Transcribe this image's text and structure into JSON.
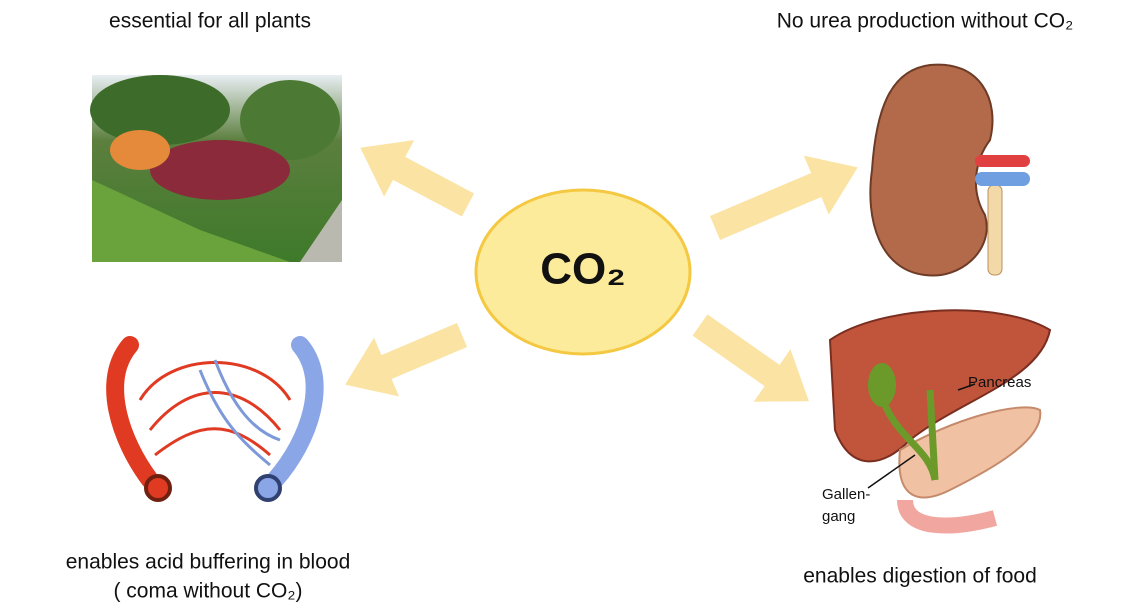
{
  "center": {
    "label": "CO₂"
  },
  "nodes": [
    {
      "label": "essential for all plants"
    },
    {
      "label": "No urea production without CO₂"
    },
    {
      "label_lines": [
        "enables acid buffering in blood",
        "( coma without CO₂)"
      ]
    },
    {
      "label": "enables digestion of food",
      "annotations": [
        "Pancreas",
        "Gallen-",
        "gang"
      ]
    }
  ]
}
